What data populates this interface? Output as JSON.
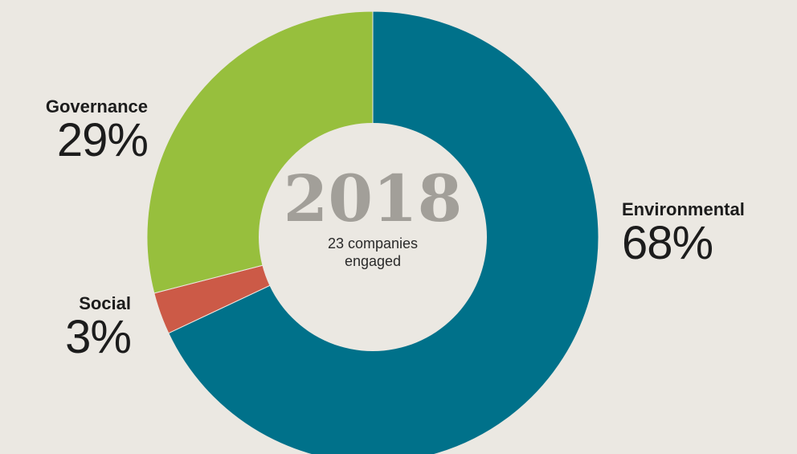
{
  "chart_data": {
    "type": "pie",
    "style": "donut",
    "center_label": "2018",
    "center_sublabel": "23 companies engaged",
    "slices": [
      {
        "label": "Environmental",
        "value": 68,
        "display": "68%",
        "color": "#00718a"
      },
      {
        "label": "Social",
        "value": 3,
        "display": "3%",
        "color": "#cc5a47"
      },
      {
        "label": "Governance",
        "value": 29,
        "display": "29%",
        "color": "#97bf3d"
      }
    ]
  },
  "labels": {
    "environmental": {
      "name": "Environmental",
      "pct": "68%"
    },
    "social": {
      "name": "Social",
      "pct": "3%"
    },
    "governance": {
      "name": "Governance",
      "pct": "29%"
    }
  },
  "center": {
    "year": "2018",
    "sub": "23 companies engaged"
  }
}
